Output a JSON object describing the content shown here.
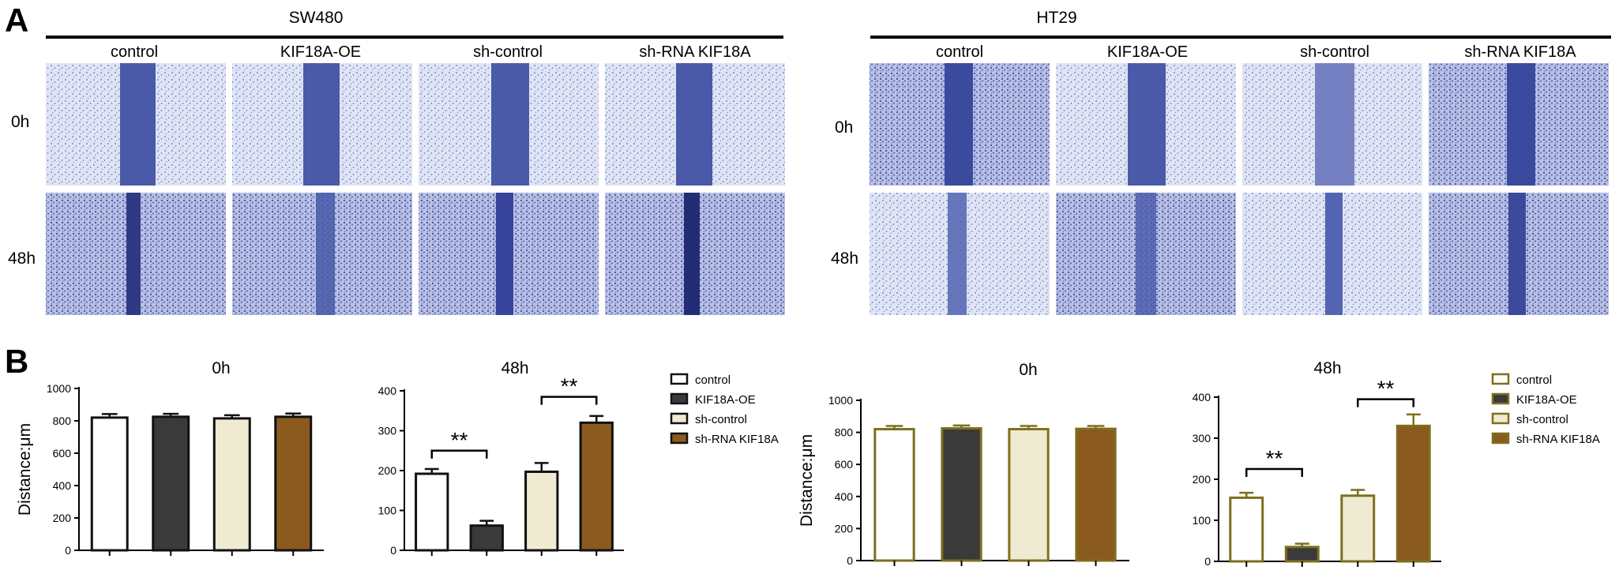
{
  "panel_labels": {
    "a": "A",
    "b": "B"
  },
  "panel_a": {
    "groups": [
      {
        "title": "SW480",
        "columns": [
          "control",
          "KIF18A-OE",
          "sh-control",
          "sh-RNA KIF18A"
        ],
        "rows": [
          "0h",
          "48h"
        ]
      },
      {
        "title": "HT29",
        "columns": [
          "control",
          "KIF18A-OE",
          "sh-control",
          "sh-RNA KIF18A"
        ],
        "rows": [
          "0h",
          "48h"
        ]
      }
    ]
  },
  "legends": [
    {
      "entries": [
        "control",
        "KIF18A-OE",
        "sh-control",
        "sh-RNA KIF18A"
      ],
      "fills": [
        "#ffffff",
        "#3a3a3a",
        "#efebd2",
        "#8b5a1f"
      ],
      "stroke": "#111111"
    },
    {
      "entries": [
        "control",
        "KIF18A-OE",
        "sh-control",
        "sh-RNA KIF18A"
      ],
      "fills": [
        "#ffffff",
        "#3a3a3a",
        "#efebd2",
        "#8b5a1f"
      ],
      "stroke": "#7d6f1e"
    }
  ],
  "chart_data": [
    {
      "type": "bar",
      "title": "0h",
      "ylabel": "Distance:μm",
      "xlabel": "",
      "categories": [
        "control",
        "KIF18A-OE",
        "sh-control",
        "sh-RNA KIF18A"
      ],
      "values": [
        820,
        825,
        815,
        825
      ],
      "errors": [
        22,
        18,
        20,
        20
      ],
      "ylim": [
        0,
        1000
      ],
      "yticks": [
        0,
        200,
        400,
        600,
        800,
        1000
      ],
      "fills": [
        "#ffffff",
        "#3a3a3a",
        "#efebd2",
        "#8b5a1f"
      ],
      "stroke": "#111111",
      "significance": []
    },
    {
      "type": "bar",
      "title": "48h",
      "ylabel": "",
      "xlabel": "",
      "categories": [
        "control",
        "KIF18A-OE",
        "sh-control",
        "sh-RNA KIF18A"
      ],
      "values": [
        192,
        62,
        197,
        320
      ],
      "errors": [
        12,
        12,
        22,
        17
      ],
      "ylim": [
        0,
        400
      ],
      "yticks": [
        0,
        100,
        200,
        300,
        400
      ],
      "fills": [
        "#ffffff",
        "#3a3a3a",
        "#efebd2",
        "#8b5a1f"
      ],
      "stroke": "#111111",
      "significance": [
        {
          "from": 0,
          "to": 1,
          "y": 250,
          "label": "**"
        },
        {
          "from": 2,
          "to": 3,
          "y": 385,
          "label": "**"
        }
      ]
    },
    {
      "type": "bar",
      "title": "0h",
      "ylabel": "Distance:μm",
      "xlabel": "",
      "categories": [
        "control",
        "KIF18A-OE",
        "sh-control",
        "sh-RNA KIF18A"
      ],
      "values": [
        820,
        825,
        820,
        822
      ],
      "errors": [
        20,
        18,
        20,
        18
      ],
      "ylim": [
        0,
        1000
      ],
      "yticks": [
        0,
        200,
        400,
        600,
        800,
        1000
      ],
      "fills": [
        "#ffffff",
        "#3a3a3a",
        "#efebd2",
        "#8b5a1f"
      ],
      "stroke": "#7d6f1e",
      "significance": []
    },
    {
      "type": "bar",
      "title": "48h",
      "ylabel": "",
      "xlabel": "",
      "categories": [
        "control",
        "KIF18A-OE",
        "sh-control",
        "sh-RNA KIF18A"
      ],
      "values": [
        155,
        35,
        160,
        330
      ],
      "errors": [
        12,
        8,
        14,
        28
      ],
      "ylim": [
        0,
        400
      ],
      "yticks": [
        0,
        100,
        200,
        300,
        400
      ],
      "fills": [
        "#ffffff",
        "#3a3a3a",
        "#efebd2",
        "#8b5a1f"
      ],
      "stroke": "#7d6f1e",
      "significance": [
        {
          "from": 0,
          "to": 1,
          "y": 225,
          "label": "**"
        },
        {
          "from": 2,
          "to": 3,
          "y": 395,
          "label": "**"
        }
      ]
    }
  ]
}
